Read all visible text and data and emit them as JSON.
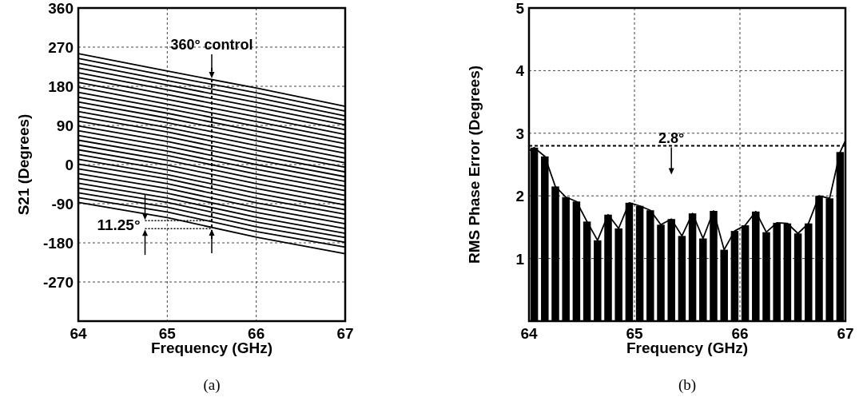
{
  "chart_data": [
    {
      "type": "line",
      "xlabel": "Frequency (GHz)",
      "ylabel": "S21 (Degrees)",
      "x": [
        64,
        65,
        66,
        67
      ],
      "xlim": [
        64,
        67
      ],
      "xticks": [
        64,
        65,
        66,
        67
      ],
      "ylim": [
        -360,
        360
      ],
      "yticks": [
        {
          "value": -360,
          "label": null
        },
        -270,
        -180,
        -90,
        0,
        90,
        180,
        270,
        360
      ],
      "grid": true,
      "line_style": "solid",
      "series": [
        {
          "color": "#000000",
          "values": [
            255,
            215,
            176,
            134
          ]
        },
        {
          "color": "#000000",
          "values": [
            244,
            204,
            165,
            123
          ]
        },
        {
          "color": "#000000",
          "values": [
            233,
            193,
            154,
            112
          ]
        },
        {
          "color": "#000000",
          "values": [
            222,
            183,
            143,
            102
          ]
        },
        {
          "color": "#000000",
          "values": [
            211,
            172,
            132,
            91
          ]
        },
        {
          "color": "#000000",
          "values": [
            200,
            161,
            121,
            80
          ]
        },
        {
          "color": "#000000",
          "values": [
            189,
            150,
            110,
            69
          ]
        },
        {
          "color": "#000000",
          "values": [
            178,
            139,
            99,
            58
          ]
        },
        {
          "color": "#000000",
          "values": [
            166,
            129,
            88,
            48
          ]
        },
        {
          "color": "#000000",
          "values": [
            155,
            118,
            77,
            37
          ]
        },
        {
          "color": "#000000",
          "values": [
            144,
            107,
            66,
            26
          ]
        },
        {
          "color": "#000000",
          "values": [
            133,
            96,
            55,
            15
          ]
        },
        {
          "color": "#000000",
          "values": [
            122,
            85,
            44,
            4
          ]
        },
        {
          "color": "#000000",
          "values": [
            111,
            75,
            33,
            -6
          ]
        },
        {
          "color": "#000000",
          "values": [
            100,
            64,
            22,
            -17
          ]
        },
        {
          "color": "#000000",
          "values": [
            89,
            53,
            11,
            -28
          ]
        },
        {
          "color": "#000000",
          "values": [
            78,
            42,
            0,
            -39
          ]
        },
        {
          "color": "#000000",
          "values": [
            67,
            31,
            -11,
            -50
          ]
        },
        {
          "color": "#000000",
          "values": [
            56,
            21,
            -22,
            -60
          ]
        },
        {
          "color": "#000000",
          "values": [
            45,
            10,
            -33,
            -71
          ]
        },
        {
          "color": "#000000",
          "values": [
            34,
            -1,
            -44,
            -82
          ]
        },
        {
          "color": "#000000",
          "values": [
            23,
            -12,
            -55,
            -93
          ]
        },
        {
          "color": "#000000",
          "values": [
            12,
            -23,
            -66,
            -104
          ]
        },
        {
          "color": "#000000",
          "values": [
            1,
            -33,
            -77,
            -114
          ]
        },
        {
          "color": "#000000",
          "values": [
            -10,
            -44,
            -88,
            -125
          ]
        },
        {
          "color": "#000000",
          "values": [
            -21,
            -55,
            -99,
            -136
          ]
        },
        {
          "color": "#000000",
          "values": [
            -32,
            -66,
            -110,
            -147
          ]
        },
        {
          "color": "#000000",
          "values": [
            -43,
            -77,
            -121,
            -158
          ]
        },
        {
          "color": "#000000",
          "values": [
            -54,
            -87,
            -132,
            -168
          ]
        },
        {
          "color": "#000000",
          "values": [
            -65,
            -98,
            -143,
            -179
          ]
        },
        {
          "color": "#000000",
          "values": [
            -76,
            -109,
            -154,
            -190
          ]
        },
        {
          "color": "#000000",
          "values": [
            -87,
            -122,
            -167,
            -205
          ]
        }
      ],
      "ref_lines": [
        {
          "axis": "x",
          "value": 65.5,
          "label": "360° control",
          "line_style": "dashed",
          "color": "#000000"
        }
      ],
      "annotations": [
        {
          "text": "11.25°",
          "x": 65.5,
          "y": -138
        },
        "(a)"
      ]
    },
    {
      "type": "bar",
      "xlabel": "Frequency (GHz)",
      "ylabel": "RMS Phase Error (Degrees)",
      "xlim": [
        64,
        67
      ],
      "xticks": [
        64,
        65,
        66,
        67
      ],
      "ylim": [
        0,
        5
      ],
      "yticks": [
        1,
        2,
        3,
        4,
        5
      ],
      "grid": true,
      "series": [
        {
          "color": "#000000",
          "x": [
            64.05,
            64.15,
            64.25,
            64.35,
            64.45,
            64.55,
            64.65,
            64.75,
            64.85,
            64.95,
            65.05,
            65.15,
            65.25,
            65.35,
            65.45,
            65.55,
            65.65,
            65.75,
            65.85,
            65.95,
            66.05,
            66.15,
            66.25,
            66.35,
            66.45,
            66.55,
            66.65,
            66.75,
            66.85,
            66.95
          ],
          "values": [
            2.77,
            2.63,
            2.15,
            1.98,
            1.91,
            1.59,
            1.29,
            1.7,
            1.48,
            1.89,
            1.84,
            1.77,
            1.54,
            1.63,
            1.36,
            1.72,
            1.32,
            1.76,
            1.14,
            1.44,
            1.53,
            1.75,
            1.42,
            1.57,
            1.56,
            1.4,
            1.56,
            2,
            1.96,
            2.7
          ]
        },
        {
          "type": "line",
          "color": "#000000",
          "x": [
            64,
            64.05,
            64.15,
            64.25,
            64.35,
            64.45,
            64.55,
            64.65,
            64.75,
            64.85,
            64.95,
            65.05,
            65.15,
            65.25,
            65.35,
            65.45,
            65.55,
            65.65,
            65.75,
            65.85,
            65.95,
            66.05,
            66.15,
            66.25,
            66.35,
            66.45,
            66.55,
            66.65,
            66.75,
            66.85,
            66.95,
            67
          ],
          "values": [
            2.72,
            2.77,
            2.63,
            2.15,
            1.98,
            1.91,
            1.59,
            1.29,
            1.7,
            1.48,
            1.89,
            1.84,
            1.77,
            1.54,
            1.63,
            1.36,
            1.72,
            1.32,
            1.76,
            1.14,
            1.44,
            1.53,
            1.75,
            1.42,
            1.57,
            1.56,
            1.4,
            1.56,
            2,
            1.96,
            2.7,
            2.88
          ]
        }
      ],
      "ref_lines": [
        {
          "axis": "y",
          "value": 2.8,
          "label": "2.8°",
          "line_style": "dashed",
          "color": "#000000"
        }
      ],
      "annotations": [
        "(b)"
      ]
    }
  ]
}
